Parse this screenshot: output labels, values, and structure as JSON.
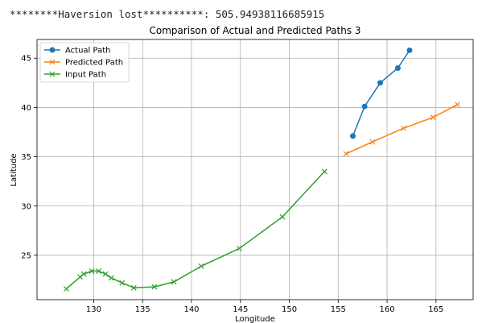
{
  "console": {
    "text": "********Haversion lost**********: 505.94938116685915"
  },
  "chart_data": {
    "type": "line",
    "title": "Comparison of Actual and Predicted Paths 3",
    "xlabel": "Longitude",
    "ylabel": "Latitude",
    "xlim": [
      124.2,
      168.8
    ],
    "ylim": [
      20.5,
      46.9
    ],
    "xticks": [
      130,
      135,
      140,
      145,
      150,
      155,
      160,
      165
    ],
    "yticks": [
      25,
      30,
      35,
      40,
      45
    ],
    "grid": true,
    "legend_position": "upper-left",
    "series": [
      {
        "name": "Actual Path",
        "color": "#1f77b4",
        "marker": "circle",
        "x": [
          156.5,
          157.7,
          159.3,
          161.1,
          162.3
        ],
        "y": [
          37.1,
          40.1,
          42.5,
          44.0,
          45.8
        ]
      },
      {
        "name": "Predicted Path",
        "color": "#ff7f0e",
        "marker": "x",
        "x": [
          155.8,
          158.5,
          161.7,
          164.7,
          167.2
        ],
        "y": [
          35.3,
          36.5,
          37.9,
          39.0,
          40.3
        ]
      },
      {
        "name": "Input Path",
        "color": "#2ca02c",
        "marker": "x",
        "x": [
          127.2,
          128.6,
          129.0,
          129.8,
          130.5,
          131.2,
          131.8,
          132.9,
          134.1,
          136.2,
          138.2,
          141.0,
          144.9,
          149.3,
          153.6
        ],
        "y": [
          21.6,
          22.8,
          23.1,
          23.4,
          23.4,
          23.1,
          22.7,
          22.2,
          21.7,
          21.8,
          22.3,
          23.9,
          25.7,
          28.9,
          33.5
        ]
      }
    ]
  }
}
